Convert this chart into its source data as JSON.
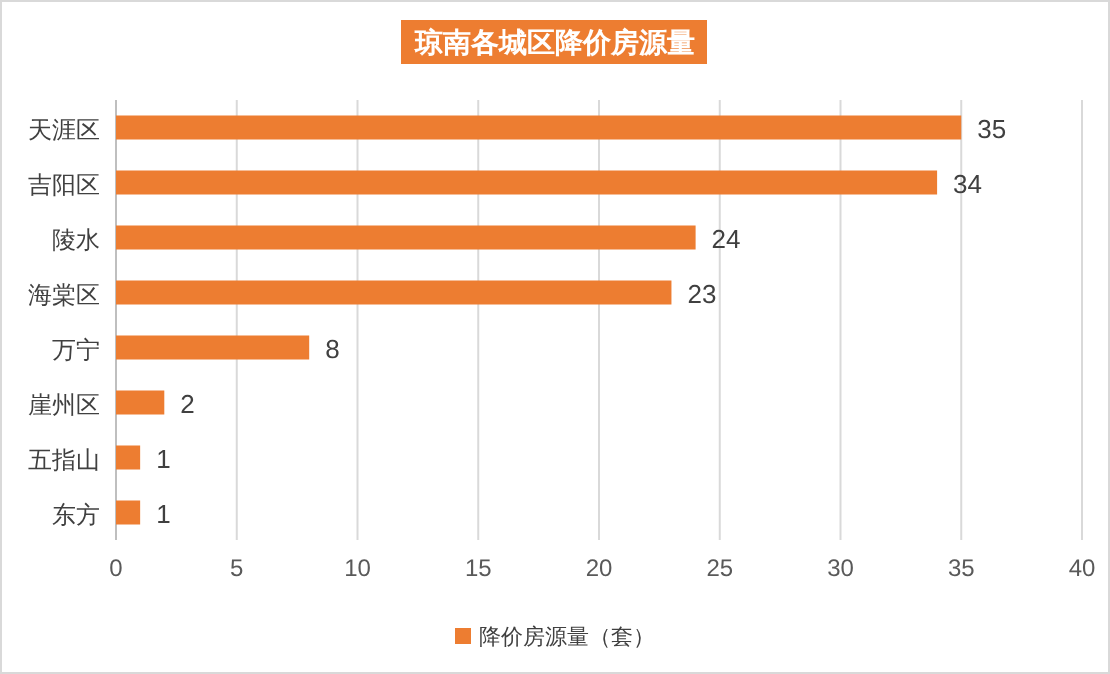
{
  "chart_data": {
    "type": "bar",
    "orientation": "horizontal",
    "title": "琼南各城区降价房源量",
    "categories": [
      "天涯区",
      "吉阳区",
      "陵水",
      "海棠区",
      "万宁",
      "崖州区",
      "五指山",
      "东方"
    ],
    "series": [
      {
        "name": "降价房源量（套）",
        "color": "#ed7d31",
        "values": [
          35,
          34,
          24,
          23,
          8,
          2,
          1,
          1
        ]
      }
    ],
    "xlim": [
      0,
      40
    ],
    "xticks": [
      0,
      5,
      10,
      15,
      20,
      25,
      30,
      35,
      40
    ],
    "grid": "x",
    "legend": "bottom",
    "data_labels": true
  }
}
